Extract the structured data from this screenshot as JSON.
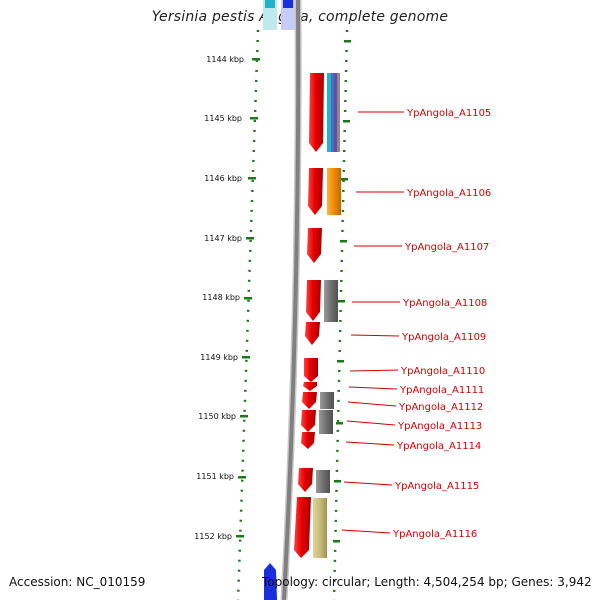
{
  "title": "Yersinia pestis Angola, complete genome",
  "accession": "Accession: NC_010159",
  "topology": "Topology: circular; Length: 4,504,254 bp; Genes: 3,942",
  "kbp_labels": [
    "1144 kbp",
    "1145 kbp",
    "1146 kbp",
    "1147 kbp",
    "1148 kbp",
    "1149 kbp",
    "1150 kbp",
    "1151 kbp",
    "1152 kbp"
  ],
  "genes": [
    "YpAngola_A1105",
    "YpAngola_A1106",
    "YpAngola_A1107",
    "YpAngola_A1108",
    "YpAngola_A1109",
    "YpAngola_A1110",
    "YpAngola_A1111",
    "YpAngola_A1112",
    "YpAngola_A1113",
    "YpAngola_A1114",
    "YpAngola_A1115",
    "YpAngola_A1116"
  ],
  "colors": {
    "gene": "#e60000",
    "tick": "#1a7a1a",
    "label": "#d40000",
    "backbone": "#8a8a8a",
    "cyan": "#22b3c8",
    "orange": "#f08a00",
    "gray": "#707070",
    "khaki": "#c8bd78",
    "blue": "#1a2ee0"
  }
}
